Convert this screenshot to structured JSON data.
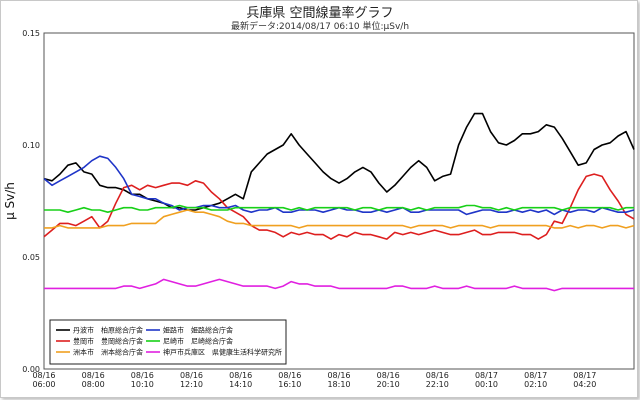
{
  "header": {
    "title": "兵庫県 空間線量率グラフ",
    "subtitle": "最新データ:2014/08/17 06:10  単位:μSv/h"
  },
  "chart_data": {
    "type": "line",
    "title": "兵庫県 空間線量率グラフ",
    "ylabel": "μ Sv/h",
    "xlabel": "",
    "ylim": [
      0,
      0.15
    ],
    "yticks": [
      "0.00",
      "0.05",
      "0.10",
      "0.15"
    ],
    "x_ticks": [
      [
        "08/16",
        "06:00"
      ],
      [
        "08/16",
        "08:00"
      ],
      [
        "08/16",
        "10:10"
      ],
      [
        "08/16",
        "12:10"
      ],
      [
        "08/16",
        "14:10"
      ],
      [
        "08/16",
        "16:10"
      ],
      [
        "08/16",
        "18:10"
      ],
      [
        "08/16",
        "20:10"
      ],
      [
        "08/16",
        "22:10"
      ],
      [
        "08/17",
        "00:10"
      ],
      [
        "08/17",
        "02:10"
      ],
      [
        "08/17",
        "04:20"
      ]
    ],
    "grid": true,
    "legend_position": "bottom-left",
    "series": [
      {
        "name": "丹波市　柏原総合庁舎",
        "color": "#000000",
        "values": [
          0.085,
          0.084,
          0.087,
          0.091,
          0.092,
          0.088,
          0.087,
          0.082,
          0.081,
          0.081,
          0.08,
          0.078,
          0.078,
          0.076,
          0.075,
          0.074,
          0.072,
          0.072,
          0.071,
          0.071,
          0.072,
          0.073,
          0.074,
          0.076,
          0.078,
          0.076,
          0.088,
          0.092,
          0.096,
          0.098,
          0.1,
          0.105,
          0.1,
          0.096,
          0.092,
          0.088,
          0.085,
          0.083,
          0.085,
          0.088,
          0.09,
          0.088,
          0.083,
          0.079,
          0.082,
          0.086,
          0.09,
          0.093,
          0.09,
          0.084,
          0.086,
          0.087,
          0.1,
          0.108,
          0.114,
          0.114,
          0.106,
          0.101,
          0.1,
          0.102,
          0.105,
          0.105,
          0.106,
          0.109,
          0.108,
          0.103,
          0.097,
          0.091,
          0.092,
          0.098,
          0.1,
          0.101,
          0.104,
          0.106,
          0.098
        ]
      },
      {
        "name": "豊岡市　豊岡総合庁舎",
        "color": "#dd1f1f",
        "values": [
          0.059,
          0.062,
          0.065,
          0.065,
          0.064,
          0.066,
          0.068,
          0.063,
          0.066,
          0.074,
          0.081,
          0.082,
          0.08,
          0.082,
          0.081,
          0.082,
          0.083,
          0.083,
          0.082,
          0.084,
          0.083,
          0.079,
          0.076,
          0.072,
          0.07,
          0.068,
          0.064,
          0.062,
          0.062,
          0.061,
          0.059,
          0.061,
          0.06,
          0.061,
          0.06,
          0.06,
          0.058,
          0.06,
          0.059,
          0.061,
          0.06,
          0.06,
          0.059,
          0.058,
          0.061,
          0.06,
          0.061,
          0.06,
          0.061,
          0.062,
          0.061,
          0.06,
          0.06,
          0.061,
          0.062,
          0.06,
          0.06,
          0.061,
          0.061,
          0.061,
          0.06,
          0.06,
          0.058,
          0.06,
          0.066,
          0.065,
          0.072,
          0.08,
          0.086,
          0.087,
          0.086,
          0.08,
          0.075,
          0.069,
          0.067
        ]
      },
      {
        "name": "洲本市　洲本総合庁舎",
        "color": "#f0a020",
        "values": [
          0.063,
          0.063,
          0.064,
          0.063,
          0.063,
          0.063,
          0.063,
          0.063,
          0.064,
          0.064,
          0.064,
          0.065,
          0.065,
          0.065,
          0.065,
          0.068,
          0.069,
          0.07,
          0.071,
          0.07,
          0.07,
          0.069,
          0.068,
          0.066,
          0.065,
          0.065,
          0.064,
          0.064,
          0.064,
          0.064,
          0.064,
          0.064,
          0.063,
          0.064,
          0.064,
          0.064,
          0.064,
          0.064,
          0.064,
          0.064,
          0.064,
          0.064,
          0.064,
          0.064,
          0.064,
          0.064,
          0.063,
          0.064,
          0.064,
          0.064,
          0.064,
          0.063,
          0.064,
          0.064,
          0.064,
          0.064,
          0.063,
          0.064,
          0.064,
          0.064,
          0.064,
          0.064,
          0.064,
          0.064,
          0.063,
          0.063,
          0.064,
          0.063,
          0.064,
          0.064,
          0.063,
          0.064,
          0.064,
          0.063,
          0.064
        ]
      },
      {
        "name": "姫路市　姫路総合庁舎",
        "color": "#1f35c8",
        "values": [
          0.085,
          0.082,
          0.084,
          0.086,
          0.088,
          0.09,
          0.093,
          0.095,
          0.094,
          0.09,
          0.085,
          0.078,
          0.077,
          0.076,
          0.076,
          0.074,
          0.073,
          0.071,
          0.072,
          0.072,
          0.073,
          0.073,
          0.072,
          0.072,
          0.073,
          0.071,
          0.07,
          0.071,
          0.071,
          0.072,
          0.07,
          0.07,
          0.071,
          0.071,
          0.071,
          0.07,
          0.071,
          0.072,
          0.071,
          0.071,
          0.07,
          0.07,
          0.071,
          0.07,
          0.071,
          0.072,
          0.07,
          0.07,
          0.071,
          0.071,
          0.071,
          0.071,
          0.071,
          0.069,
          0.07,
          0.071,
          0.071,
          0.07,
          0.07,
          0.071,
          0.07,
          0.071,
          0.07,
          0.071,
          0.069,
          0.071,
          0.07,
          0.071,
          0.071,
          0.07,
          0.072,
          0.071,
          0.07,
          0.07,
          0.071
        ]
      },
      {
        "name": "尼崎市　尼崎総合庁舎",
        "color": "#18d018",
        "values": [
          0.071,
          0.071,
          0.071,
          0.07,
          0.071,
          0.072,
          0.071,
          0.071,
          0.07,
          0.071,
          0.072,
          0.072,
          0.071,
          0.071,
          0.072,
          0.072,
          0.072,
          0.073,
          0.072,
          0.072,
          0.072,
          0.071,
          0.071,
          0.071,
          0.072,
          0.072,
          0.072,
          0.072,
          0.072,
          0.072,
          0.072,
          0.071,
          0.072,
          0.071,
          0.072,
          0.072,
          0.072,
          0.072,
          0.072,
          0.071,
          0.072,
          0.072,
          0.071,
          0.072,
          0.072,
          0.072,
          0.071,
          0.072,
          0.071,
          0.072,
          0.072,
          0.072,
          0.072,
          0.073,
          0.073,
          0.072,
          0.072,
          0.071,
          0.072,
          0.071,
          0.072,
          0.072,
          0.072,
          0.072,
          0.072,
          0.071,
          0.072,
          0.072,
          0.072,
          0.072,
          0.072,
          0.072,
          0.071,
          0.072,
          0.072
        ]
      },
      {
        "name": "神戸市兵庫区　県健康生活科学研究所",
        "color": "#e020e0",
        "values": [
          0.036,
          0.036,
          0.036,
          0.036,
          0.036,
          0.036,
          0.036,
          0.036,
          0.036,
          0.036,
          0.037,
          0.037,
          0.036,
          0.037,
          0.038,
          0.04,
          0.039,
          0.038,
          0.037,
          0.037,
          0.038,
          0.039,
          0.04,
          0.039,
          0.038,
          0.037,
          0.037,
          0.037,
          0.037,
          0.036,
          0.037,
          0.039,
          0.038,
          0.038,
          0.037,
          0.037,
          0.037,
          0.036,
          0.036,
          0.036,
          0.036,
          0.036,
          0.036,
          0.036,
          0.037,
          0.037,
          0.036,
          0.036,
          0.036,
          0.037,
          0.036,
          0.036,
          0.036,
          0.037,
          0.036,
          0.036,
          0.036,
          0.036,
          0.036,
          0.037,
          0.036,
          0.036,
          0.036,
          0.036,
          0.035,
          0.036,
          0.036,
          0.036,
          0.036,
          0.036,
          0.036,
          0.036,
          0.036,
          0.036,
          0.036
        ]
      }
    ]
  }
}
